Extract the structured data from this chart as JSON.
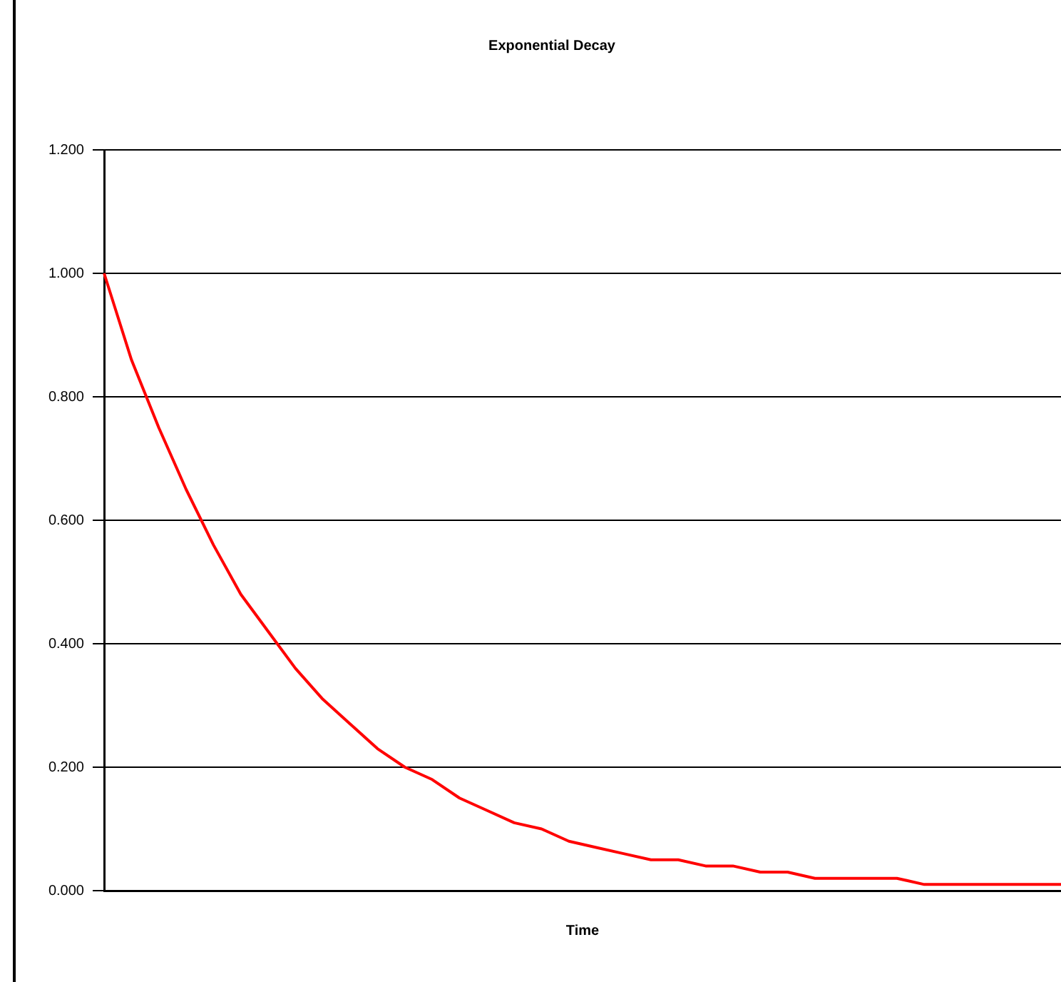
{
  "chart_data": {
    "type": "line",
    "title": "Exponential Decay",
    "xlabel": "Time",
    "categories": [
      null,
      null,
      null,
      null,
      null,
      null,
      null,
      null,
      null,
      null,
      null,
      null,
      null,
      null,
      null,
      null,
      null,
      null,
      null,
      null,
      null,
      null,
      null,
      null,
      null,
      null,
      null,
      null,
      null,
      null,
      null,
      null,
      null,
      null,
      null,
      null
    ],
    "series": [
      {
        "color": "#ff0000",
        "values": [
          1.0,
          0.86,
          0.75,
          0.65,
          0.56,
          0.48,
          0.42,
          0.36,
          0.31,
          0.27,
          0.23,
          0.2,
          0.18,
          0.15,
          0.13,
          0.11,
          0.1,
          0.08,
          0.07,
          0.06,
          0.05,
          0.05,
          0.04,
          0.04,
          0.03,
          0.03,
          0.02,
          0.02,
          0.02,
          0.02,
          0.01,
          0.01,
          0.01,
          0.01,
          0.01,
          0.01
        ]
      }
    ],
    "ylim": [
      0,
      1.2
    ],
    "yticks": [
      {
        "value": 0,
        "label": "0.000"
      },
      {
        "value": 0.2,
        "label": "0.200"
      },
      {
        "value": 0.4,
        "label": "0.400"
      },
      {
        "value": 0.6,
        "label": "0.600"
      },
      {
        "value": 0.8,
        "label": "0.800"
      },
      {
        "value": 1,
        "label": "1.000"
      },
      {
        "value": 1.2,
        "label": "1.200"
      }
    ],
    "grid": "y",
    "legend": false,
    "marker": "none",
    "line_style": "solid",
    "tick_labels": "y"
  }
}
